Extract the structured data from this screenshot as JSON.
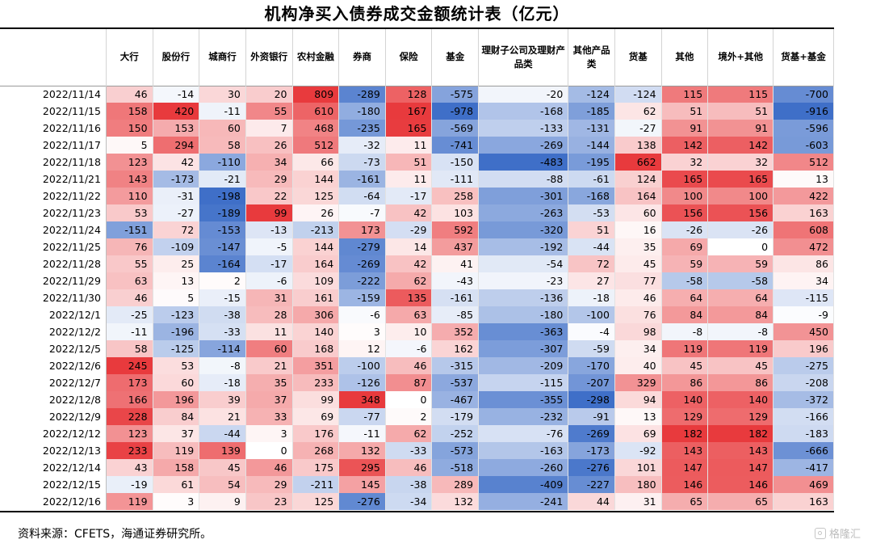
{
  "title": "机构净买入债券成交金额统计表（亿元）",
  "source": "资料来源：CFETS，海通证券研究所。",
  "watermark": "格隆汇",
  "colors": {
    "positive": "#e8383d",
    "negative": "#3f6fc8",
    "neutral": "#ffffff"
  },
  "chart_data": {
    "type": "table",
    "columns": [
      "大行",
      "股份行",
      "城商行",
      "外资银行",
      "农村金融",
      "券商",
      "保险",
      "基金",
      "理财子公司及理财产品类",
      "其他产品类",
      "货基",
      "其他",
      "境外+其他",
      "货基+基金"
    ],
    "rows": [
      {
        "date": "2022/11/14",
        "values": [
          46,
          -14,
          30,
          20,
          809,
          -289,
          128,
          -575,
          -20,
          -124,
          -124,
          115,
          115,
          -700
        ]
      },
      {
        "date": "2022/11/15",
        "values": [
          158,
          420,
          -11,
          55,
          610,
          -180,
          167,
          -978,
          -168,
          -185,
          62,
          51,
          51,
          -916
        ]
      },
      {
        "date": "2022/11/16",
        "values": [
          150,
          153,
          60,
          7,
          468,
          -235,
          165,
          -569,
          -133,
          -131,
          -27,
          91,
          91,
          -596
        ]
      },
      {
        "date": "2022/11/17",
        "values": [
          5,
          294,
          58,
          26,
          512,
          -32,
          11,
          -741,
          -269,
          -144,
          138,
          142,
          142,
          -603
        ]
      },
      {
        "date": "2022/11/18",
        "values": [
          123,
          42,
          -110,
          34,
          66,
          -73,
          51,
          -150,
          -483,
          -195,
          662,
          32,
          32,
          512
        ]
      },
      {
        "date": "2022/11/21",
        "values": [
          143,
          -173,
          -21,
          29,
          144,
          -161,
          11,
          -111,
          -88,
          -61,
          124,
          165,
          165,
          13
        ]
      },
      {
        "date": "2022/11/22",
        "values": [
          110,
          -31,
          -198,
          22,
          125,
          -64,
          -17,
          258,
          -301,
          -168,
          164,
          100,
          100,
          422
        ]
      },
      {
        "date": "2022/11/23",
        "values": [
          53,
          -27,
          -189,
          99,
          26,
          -7,
          42,
          103,
          -263,
          -53,
          60,
          156,
          156,
          163
        ]
      },
      {
        "date": "2022/11/24",
        "values": [
          -151,
          72,
          -153,
          -13,
          -213,
          173,
          -29,
          592,
          -320,
          51,
          16,
          -26,
          -26,
          608
        ]
      },
      {
        "date": "2022/11/25",
        "values": [
          76,
          -109,
          -147,
          -5,
          144,
          -279,
          14,
          437,
          -192,
          -44,
          35,
          69,
          0,
          472
        ]
      },
      {
        "date": "2022/11/28",
        "values": [
          55,
          25,
          -164,
          -17,
          164,
          -269,
          42,
          41,
          -54,
          72,
          45,
          59,
          59,
          86
        ]
      },
      {
        "date": "2022/11/29",
        "values": [
          63,
          13,
          2,
          -6,
          109,
          -222,
          62,
          -43,
          -23,
          27,
          77,
          -58,
          -58,
          34
        ]
      },
      {
        "date": "2022/11/30",
        "values": [
          46,
          5,
          -15,
          31,
          161,
          -159,
          135,
          -161,
          -136,
          -18,
          46,
          64,
          64,
          -115
        ]
      },
      {
        "date": "2022/12/1",
        "values": [
          -25,
          -123,
          -38,
          28,
          306,
          -6,
          63,
          -85,
          -180,
          -100,
          76,
          84,
          84,
          -9
        ]
      },
      {
        "date": "2022/12/2",
        "values": [
          -11,
          -196,
          -33,
          11,
          140,
          3,
          10,
          352,
          -363,
          -4,
          98,
          -8,
          -8,
          450
        ]
      },
      {
        "date": "2022/12/5",
        "values": [
          58,
          -125,
          -114,
          60,
          168,
          12,
          -6,
          162,
          -307,
          -59,
          34,
          119,
          119,
          196
        ]
      },
      {
        "date": "2022/12/6",
        "values": [
          245,
          53,
          -8,
          21,
          351,
          -100,
          46,
          -315,
          -209,
          -170,
          40,
          45,
          45,
          -275
        ]
      },
      {
        "date": "2022/12/7",
        "values": [
          173,
          60,
          -18,
          35,
          233,
          -126,
          87,
          -537,
          -115,
          -207,
          329,
          86,
          86,
          -208
        ]
      },
      {
        "date": "2022/12/8",
        "values": [
          166,
          196,
          39,
          37,
          99,
          348,
          0,
          -467,
          -355,
          -298,
          94,
          140,
          140,
          -372
        ]
      },
      {
        "date": "2022/12/9",
        "values": [
          228,
          84,
          21,
          33,
          69,
          -77,
          2,
          -179,
          -232,
          -91,
          13,
          129,
          129,
          -166
        ]
      },
      {
        "date": "2022/12/12",
        "values": [
          123,
          37,
          -44,
          3,
          176,
          -11,
          62,
          -252,
          -76,
          -269,
          69,
          182,
          182,
          -183
        ]
      },
      {
        "date": "2022/12/13",
        "values": [
          233,
          119,
          139,
          0,
          268,
          132,
          -33,
          -573,
          -163,
          -173,
          -92,
          143,
          143,
          -666
        ]
      },
      {
        "date": "2022/12/14",
        "values": [
          43,
          158,
          45,
          46,
          175,
          295,
          46,
          -518,
          -260,
          -276,
          101,
          147,
          147,
          -417
        ]
      },
      {
        "date": "2022/12/15",
        "values": [
          -19,
          61,
          54,
          29,
          -211,
          145,
          -38,
          289,
          -409,
          -227,
          180,
          146,
          146,
          469
        ]
      },
      {
        "date": "2022/12/16",
        "values": [
          119,
          3,
          9,
          23,
          125,
          -276,
          -34,
          132,
          -241,
          44,
          31,
          65,
          65,
          163
        ]
      }
    ]
  }
}
